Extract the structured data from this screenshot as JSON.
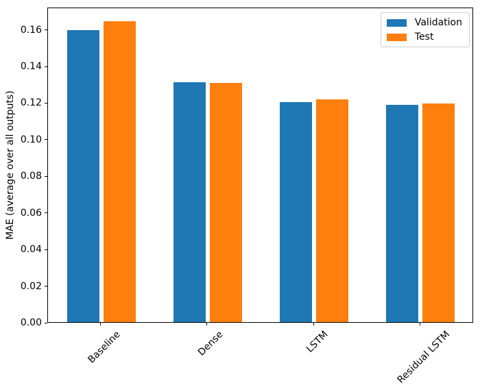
{
  "figure": {
    "background": "#ffffff",
    "spine_color": "#000000"
  },
  "chart_data": {
    "type": "bar",
    "title": "",
    "xlabel": "",
    "ylabel": "MAE (average over all outputs)",
    "categories": [
      "Baseline",
      "Dense",
      "LSTM",
      "Residual LSTM"
    ],
    "series": [
      {
        "name": "Validation",
        "color": "#1f77b4",
        "values": [
          0.1595,
          0.1312,
          0.1203,
          0.1187
        ]
      },
      {
        "name": "Test",
        "color": "#ff7f0e",
        "values": [
          0.1642,
          0.1308,
          0.1217,
          0.1196
        ]
      }
    ],
    "ylim": [
      0,
      0.1722
    ],
    "ytick_values": [
      0.0,
      0.02,
      0.04,
      0.06,
      0.08,
      0.1,
      0.12,
      0.14,
      0.16
    ],
    "ytick_labels": [
      "0.00",
      "0.02",
      "0.04",
      "0.06",
      "0.08",
      "0.10",
      "0.12",
      "0.14",
      "0.16"
    ],
    "xtick_rotation_deg": 45,
    "grid": false,
    "legend": {
      "position": "upper right",
      "entries": [
        "Validation",
        "Test"
      ]
    }
  }
}
